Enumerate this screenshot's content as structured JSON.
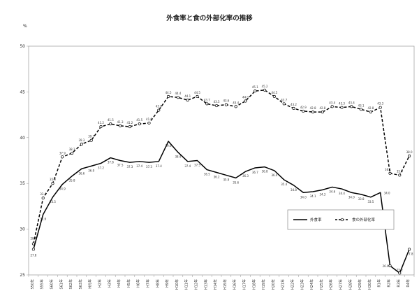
{
  "chart_data": {
    "type": "line",
    "title": "外食率と食の外部化率の推移",
    "ylabel": "%",
    "xlabel": "",
    "ylim": [
      25,
      50
    ],
    "yticks": [
      25,
      30,
      35,
      40,
      45,
      50
    ],
    "grid": false,
    "legend_position": "bottom-right",
    "categories": [
      "S50年",
      "S55年",
      "S60年",
      "S61年",
      "S62年",
      "S63年",
      "H元年",
      "H2年",
      "H3年",
      "H4年",
      "H5年",
      "H6年",
      "H7年",
      "H8年",
      "H9年",
      "H10年",
      "H11年",
      "H12年",
      "H13年",
      "H14年",
      "H15年",
      "H16年",
      "H17年",
      "H18年",
      "H19年",
      "H20年",
      "H21年",
      "H22年",
      "H23年",
      "H24年",
      "H25年",
      "H26年",
      "H27年",
      "H28年",
      "H29年",
      "H30年",
      "R1年",
      "R2年",
      "R3年",
      "R4年"
    ],
    "series": [
      {
        "name": "外食率",
        "color": "#000000",
        "style": "solid",
        "values": [
          27.8,
          31.6,
          33.5,
          34.9,
          35.8,
          36.6,
          36.9,
          37.2,
          37.8,
          37.5,
          37.3,
          37.4,
          37.3,
          37.4,
          39.6,
          38.4,
          37.4,
          37.5,
          36.5,
          36.2,
          35.9,
          35.6,
          36.3,
          36.7,
          36.8,
          36.4,
          35.4,
          34.8,
          34.0,
          34.1,
          34.3,
          34.6,
          34.4,
          34.0,
          33.8,
          33.5,
          34.0,
          26.0,
          25.2,
          27.8
        ],
        "labels": [
          "27.8",
          "31.6",
          "33.5",
          "34.9",
          "35.8",
          "36.6",
          "36.9",
          "37.2",
          "37.8",
          "37.5",
          "37.3",
          "37.4",
          "37.3",
          "37.4",
          "39.6",
          "38.4",
          "37.4",
          "37.5",
          "36.5",
          "36.2",
          "35.9",
          "35.6",
          "36.3",
          "36.7",
          "36.8",
          "36.4",
          "35.4",
          "34.8",
          "34.0",
          "34.1",
          "34.3",
          "34.6",
          "34.4",
          "34.0",
          "33.8",
          "33.5",
          "34.0",
          "26.0",
          "25.2",
          "27.8"
        ]
      },
      {
        "name": "食の外部化率",
        "color": "#000000",
        "style": "dashed",
        "values": [
          28.4,
          33.4,
          35.0,
          37.9,
          38.3,
          39.3,
          39.7,
          41.2,
          41.5,
          41.3,
          41.2,
          41.5,
          41.6,
          43.0,
          44.5,
          44.4,
          44.1,
          44.5,
          43.7,
          43.5,
          43.6,
          43.4,
          44.0,
          45.1,
          45.2,
          44.5,
          43.7,
          43.2,
          42.9,
          42.8,
          42.8,
          43.4,
          43.3,
          43.4,
          43.1,
          42.8,
          43.3,
          36.1,
          35.9,
          38.0
        ],
        "labels": [
          "28.4",
          "33.4",
          "35.0",
          "37.9",
          "38.3",
          "39.3",
          "39.7",
          "41.2",
          "41.5",
          "41.3",
          "41.2",
          "41.5",
          "41.6",
          "43.0",
          "44.5",
          "44.4",
          "44.1",
          "44.5",
          "43.7",
          "43.5",
          "43.6",
          "43.4",
          "44.0",
          "45.1",
          "45.2",
          "44.5",
          "43.7",
          "43.2",
          "42.9",
          "42.8",
          "42.8",
          "43.4",
          "43.3",
          "43.4",
          "43.1",
          "42.8",
          "43.3",
          "36.1",
          "35.9",
          "38.0"
        ]
      }
    ]
  }
}
